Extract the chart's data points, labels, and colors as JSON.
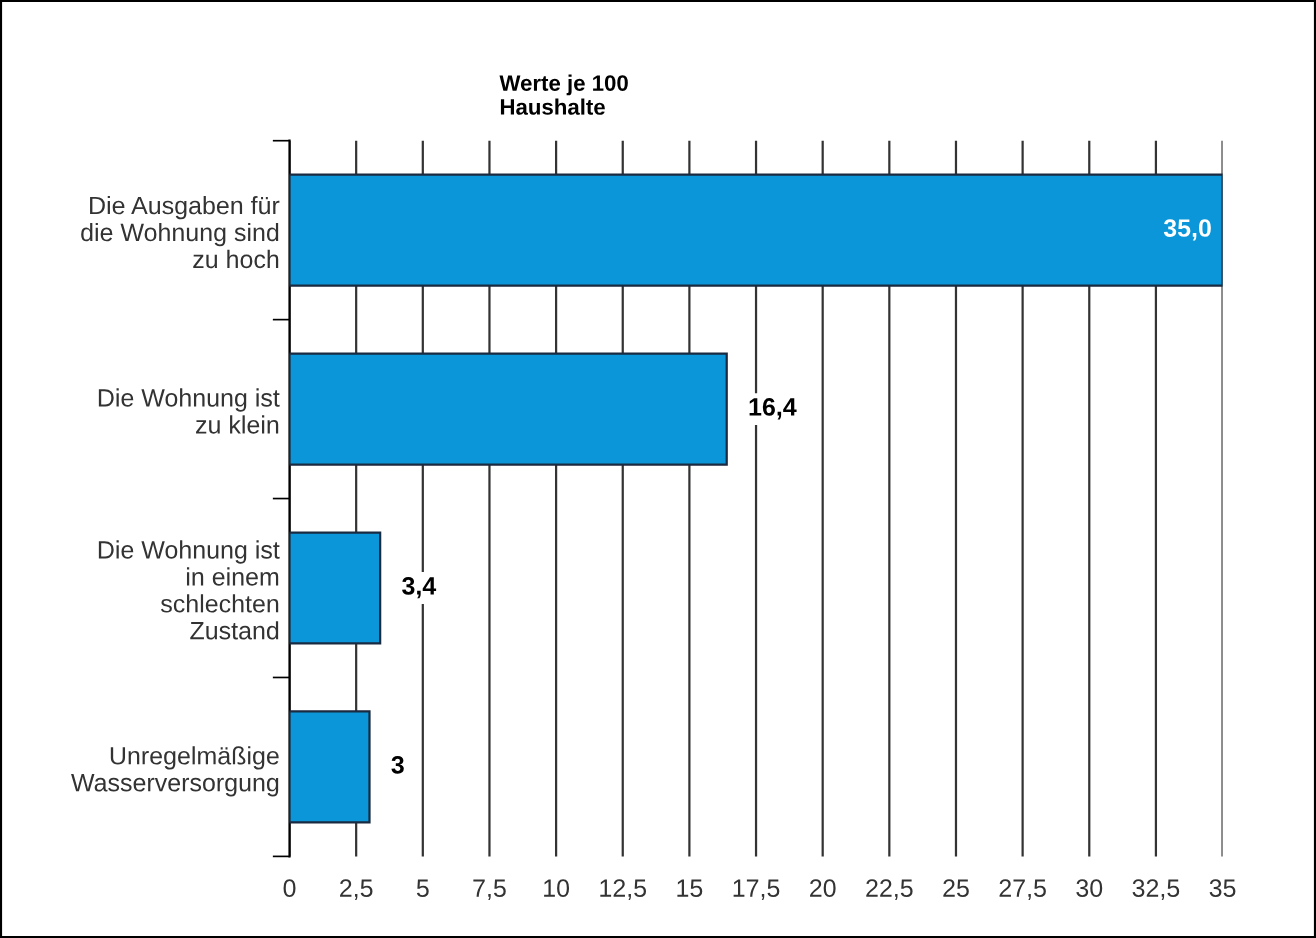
{
  "chart_data": {
    "type": "bar",
    "orientation": "horizontal",
    "title": "Werte je 100\nHaushalte",
    "categories": [
      "Die Ausgaben für\ndie Wohnung sind\nzu hoch",
      "Die Wohnung ist\nzu klein",
      "Die Wohnung ist\nin einem\nschlechten\nZustand",
      "Unregelmäßige\nWasserversorgung"
    ],
    "values": [
      35.0,
      16.4,
      3.4,
      3
    ],
    "value_labels": [
      "35,0",
      "16,4",
      "3,4",
      "3"
    ],
    "color": "#0a96d8",
    "xlim": [
      0,
      35
    ],
    "xticks": [
      0,
      {
        "value": 2.5,
        "label": "2,5"
      },
      5,
      {
        "value": 7.5,
        "label": "7,5"
      },
      10,
      {
        "value": 12.5,
        "label": "12,5"
      },
      15,
      {
        "value": 17.5,
        "label": "17,5"
      },
      20,
      {
        "value": 22.5,
        "label": "22,5"
      },
      25,
      {
        "value": 27.5,
        "label": "27,5"
      },
      30,
      {
        "value": 32.5,
        "label": "32,5"
      },
      35
    ],
    "grid": "x",
    "legend": false
  }
}
